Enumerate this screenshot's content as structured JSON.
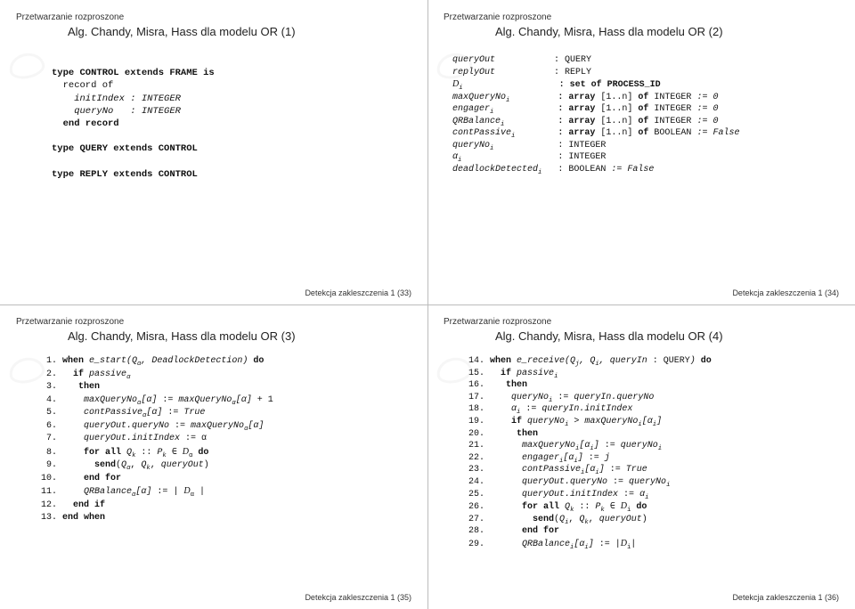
{
  "crumb": "Przetwarzanie rozproszone",
  "titles": {
    "p1": "Alg. Chandy, Misra, Hass dla modelu OR (1)",
    "p2": "Alg. Chandy, Misra, Hass dla modelu OR (2)",
    "p3": "Alg. Chandy, Misra, Hass dla modelu OR (3)",
    "p4": "Alg. Chandy, Misra, Hass dla modelu OR (4)"
  },
  "footers": {
    "p1": "Detekcja zakleszczenia 1 (33)",
    "p2": "Detekcja zakleszczenia 1 (34)",
    "p3": "Detekcja zakleszczenia 1 (35)",
    "p4": "Detekcja zakleszczenia 1 (36)"
  },
  "panel1": {
    "l1": "type CONTROL extends FRAME is",
    "l2": "  record of",
    "l3": "    initIndex : INTEGER",
    "l4": "    queryNo   : INTEGER",
    "l5": "  end record",
    "l6": "type QUERY extends CONTROL",
    "l7": "type REPLY extends CONTROL"
  },
  "panel2": {
    "r1a": "queryOut",
    "r1b": ": QUERY",
    "r2a": "replyOut",
    "r2b": ": REPLY",
    "r3a": "Dᵢ",
    "r3b": ": set of PROCESS_ID",
    "r4a": "maxQueryNoᵢ",
    "r4b": ": array [1..n] of INTEGER := 0",
    "r5a": "engagerᵢ",
    "r5b": ": array [1..n] of INTEGER := 0",
    "r6a": "QRBalanceᵢ",
    "r6b": ": array [1..n] of INTEGER := 0",
    "r7a": "contPassiveᵢ",
    "r7b": ": array [1..n] of BOOLEAN := False",
    "r8a": "queryNoᵢ",
    "r8b": ": INTEGER",
    "r9a": "αᵢ",
    "r9b": ": INTEGER",
    "r10a": "deadlockDetectedᵢ",
    "r10b": ": BOOLEAN := False"
  },
  "panel3": {
    "l1": "when e_start(Qα, DeadlockDetection) do",
    "l2": "  if passiveα",
    "l3": "   then",
    "l4": "    maxQueryNoα[α] := maxQueryNoα[α] + 1",
    "l5": "    contPassiveα[α] := True",
    "l6": "    queryOut.queryNo := maxQueryNoα[α]",
    "l7": "    queryOut.initIndex := α",
    "l8": "    for all Qk :: Pk ∈ Dα do",
    "l9": "      send(Qα, Qk, queryOut)",
    "l10": "    end for",
    "l11": "    QRBalanceα[α] := | Dα |",
    "l12": "  end if",
    "l13": "end when"
  },
  "panel4": {
    "l14": "when e_receive(Qj, Qi, queryIn : QUERY) do",
    "l15": "  if passiveᵢ",
    "l16": "   then",
    "l17": "    queryNoᵢ := queryIn.queryNo",
    "l18": "    αᵢ := queryIn.initIndex",
    "l19": "    if queryNoᵢ > maxQueryNoᵢ[αᵢ]",
    "l20": "     then",
    "l21": "      maxQueryNoᵢ[αᵢ] := queryNoᵢ",
    "l22": "      engagerᵢ[αᵢ] := j",
    "l23": "      contPassiveᵢ[αᵢ] := True",
    "l24": "      queryOut.queryNo := queryNoᵢ",
    "l25": "      queryOut.initIndex := αᵢ",
    "l26": "      for all Qk :: Pk ∈ Dᵢ do",
    "l27": "        send(Qi, Qk, queryOut)",
    "l28": "      end for",
    "l29": "      QRBalanceᵢ[αᵢ] := |Dᵢ|"
  },
  "linenums3": [
    "1.",
    "2.",
    "3.",
    "4.",
    "5.",
    "6.",
    "7.",
    "8.",
    "9.",
    "10.",
    "11.",
    "12.",
    "13."
  ],
  "linenums4": [
    "14.",
    "15.",
    "16.",
    "17.",
    "18.",
    "19.",
    "20.",
    "21.",
    "22.",
    "23.",
    "24.",
    "25.",
    "26.",
    "27.",
    "28.",
    "29."
  ]
}
